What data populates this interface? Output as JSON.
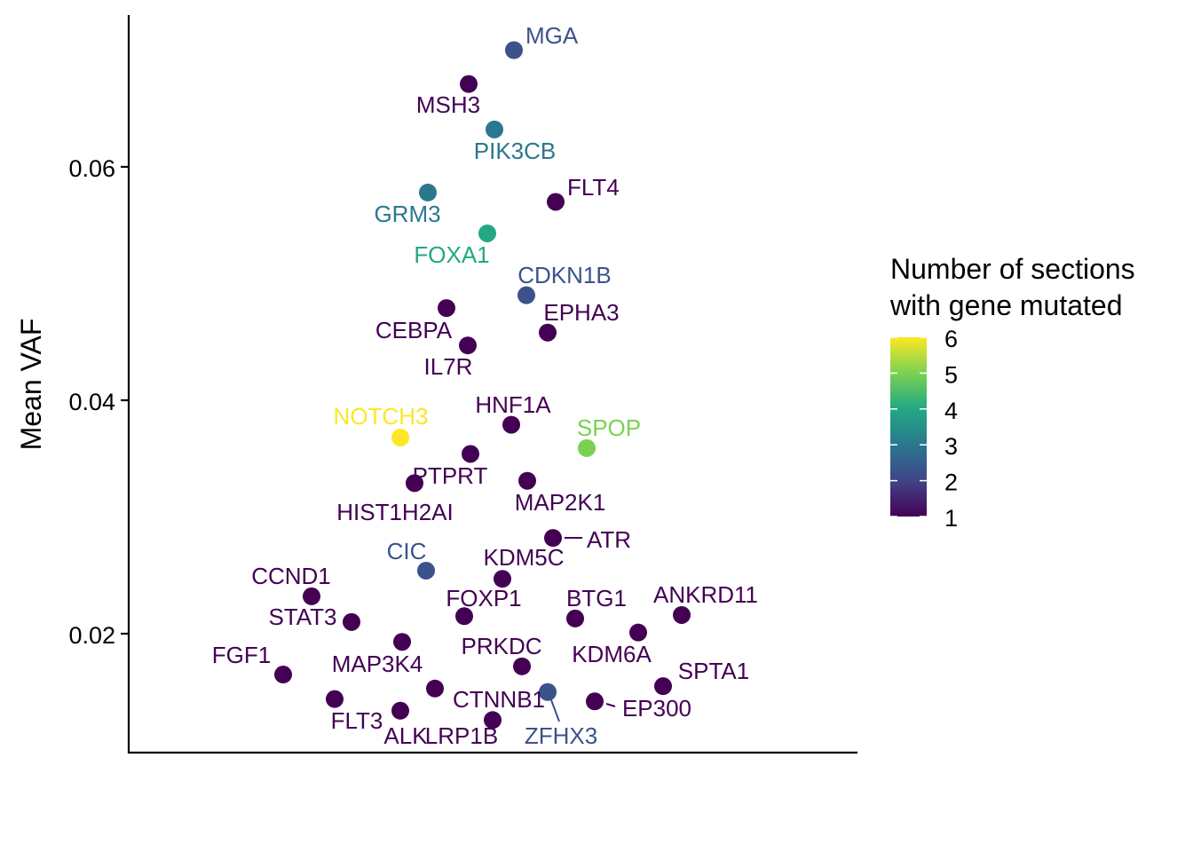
{
  "chart_data": {
    "type": "scatter",
    "xlabel": "",
    "ylabel": "Mean VAF",
    "y_ticks": [
      0.02,
      0.04,
      0.06
    ],
    "y_tick_labels": [
      "0.02",
      "0.04",
      "0.06"
    ],
    "ylim": [
      0.0095,
      0.0728
    ],
    "x_axis_labels_shown": false,
    "legend": {
      "title_line1": "Number of sections",
      "title_line2": "with gene mutated",
      "position": "right",
      "min": 1,
      "max": 6,
      "breaks": [
        1,
        2,
        3,
        4,
        5,
        6
      ],
      "break_labels": [
        "6",
        "5",
        "4",
        "3",
        "2",
        "1"
      ],
      "palette": [
        "#440154",
        "#414487",
        "#2A788E",
        "#22A884",
        "#7AD151",
        "#FDE725"
      ]
    },
    "points": [
      {
        "gene": "MGA",
        "y": 0.07,
        "sections": 2,
        "color": "#3B528B"
      },
      {
        "gene": "MSH3",
        "y": 0.0671,
        "sections": 1,
        "color": "#440154"
      },
      {
        "gene": "PIK3CB",
        "y": 0.0632,
        "sections": 3,
        "color": "#2A788E"
      },
      {
        "gene": "GRM3",
        "y": 0.0578,
        "sections": 3,
        "color": "#2A788E"
      },
      {
        "gene": "FLT4",
        "y": 0.057,
        "sections": 1,
        "color": "#440154"
      },
      {
        "gene": "FOXA1",
        "y": 0.0543,
        "sections": 4,
        "color": "#22A884"
      },
      {
        "gene": "CDKN1B",
        "y": 0.049,
        "sections": 2,
        "color": "#3B528B"
      },
      {
        "gene": "CEBPA",
        "y": 0.0479,
        "sections": 1,
        "color": "#440154"
      },
      {
        "gene": "EPHA3",
        "y": 0.0458,
        "sections": 1,
        "color": "#440154"
      },
      {
        "gene": "IL7R",
        "y": 0.0447,
        "sections": 1,
        "color": "#440154"
      },
      {
        "gene": "HNF1A",
        "y": 0.0379,
        "sections": 1,
        "color": "#440154"
      },
      {
        "gene": "NOTCH3",
        "y": 0.0368,
        "sections": 6,
        "color": "#FDE725"
      },
      {
        "gene": "SPOP",
        "y": 0.0359,
        "sections": 5,
        "color": "#7AD151"
      },
      {
        "gene": "PTPRT",
        "y": 0.0354,
        "sections": 1,
        "color": "#440154"
      },
      {
        "gene": "MAP2K1",
        "y": 0.0331,
        "sections": 1,
        "color": "#440154"
      },
      {
        "gene": "HIST1H2AI",
        "y": 0.0329,
        "sections": 1,
        "color": "#440154"
      },
      {
        "gene": "ATR",
        "y": 0.0282,
        "sections": 1,
        "color": "#440154"
      },
      {
        "gene": "CIC",
        "y": 0.0254,
        "sections": 2,
        "color": "#3B528B"
      },
      {
        "gene": "KDM5C",
        "y": 0.0247,
        "sections": 1,
        "color": "#440154"
      },
      {
        "gene": "CCND1",
        "y": 0.0232,
        "sections": 1,
        "color": "#440154"
      },
      {
        "gene": "ANKRD11",
        "y": 0.0216,
        "sections": 1,
        "color": "#440154"
      },
      {
        "gene": "FOXP1",
        "y": 0.0215,
        "sections": 1,
        "color": "#440154"
      },
      {
        "gene": "BTG1",
        "y": 0.0213,
        "sections": 1,
        "color": "#440154"
      },
      {
        "gene": "STAT3",
        "y": 0.021,
        "sections": 1,
        "color": "#440154"
      },
      {
        "gene": "KDM6A",
        "y": 0.0201,
        "sections": 1,
        "color": "#440154"
      },
      {
        "gene": "MAP3K4",
        "y": 0.0193,
        "sections": 1,
        "color": "#440154"
      },
      {
        "gene": "PRKDC",
        "y": 0.0172,
        "sections": 1,
        "color": "#440154"
      },
      {
        "gene": "FGF1",
        "y": 0.0165,
        "sections": 1,
        "color": "#440154"
      },
      {
        "gene": "SPTA1",
        "y": 0.0155,
        "sections": 1,
        "color": "#440154"
      },
      {
        "gene": "CTNNB1",
        "y": 0.0153,
        "sections": 1,
        "color": "#440154"
      },
      {
        "gene": "ZFHX3",
        "y": 0.015,
        "sections": 2,
        "color": "#3B528B"
      },
      {
        "gene": "FLT3",
        "y": 0.0144,
        "sections": 1,
        "color": "#440154"
      },
      {
        "gene": "EP300",
        "y": 0.0142,
        "sections": 1,
        "color": "#440154"
      },
      {
        "gene": "ALK",
        "y": 0.0134,
        "sections": 1,
        "color": "#440154"
      },
      {
        "gene": "LRP1B",
        "y": 0.0126,
        "sections": 1,
        "color": "#440154"
      }
    ]
  }
}
